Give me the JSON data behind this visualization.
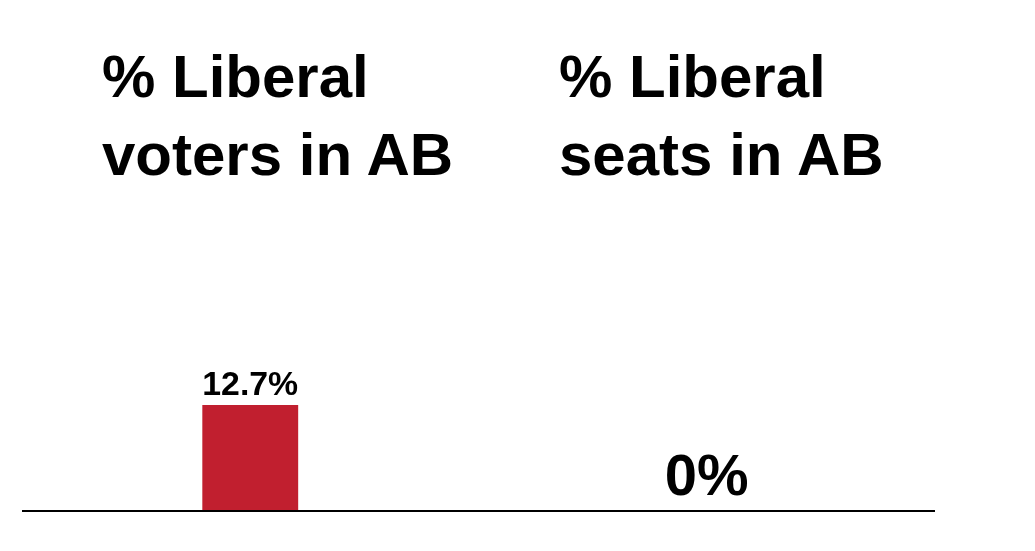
{
  "chart_data": {
    "type": "bar",
    "categories": [
      "% Liberal voters in AB",
      "% Liberal seats in AB"
    ],
    "values": [
      12.7,
      0
    ],
    "value_labels": [
      "12.7%",
      "0%"
    ],
    "color": "#c11f2f",
    "ylim": [
      0,
      12.7
    ],
    "legend": false
  }
}
